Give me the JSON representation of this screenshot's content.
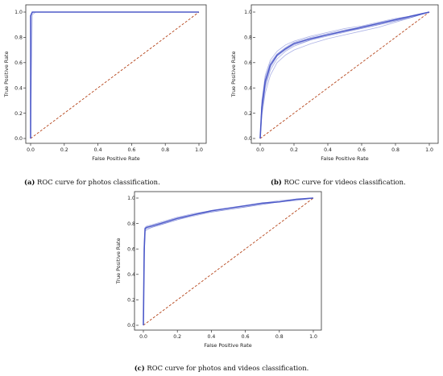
{
  "chart_data": [
    {
      "id": "a",
      "type": "line",
      "caption_letter": "(a)",
      "caption_text": "ROC curve for photos classification.",
      "xlabel": "False Positive Rate",
      "ylabel": "True Positive Rate",
      "xlim": [
        0,
        1
      ],
      "ylim": [
        0,
        1
      ],
      "ticks": [
        "0.0",
        "0.2",
        "0.4",
        "0.6",
        "0.8",
        "1.0"
      ],
      "series": [
        {
          "x": [
            0,
            0,
            0.01,
            1
          ],
          "y": [
            0,
            0.97,
            1.0,
            1.0
          ]
        },
        {
          "x": [
            0,
            0.005,
            0.02,
            1
          ],
          "y": [
            0,
            0.99,
            1.0,
            1.0
          ]
        },
        {
          "x": [
            0,
            0.01,
            0.03,
            1
          ],
          "y": [
            0,
            0.98,
            1.0,
            1.0
          ]
        }
      ]
    },
    {
      "id": "b",
      "type": "line",
      "caption_letter": "(b)",
      "caption_text": "ROC curve for videos classification.",
      "xlabel": "False Positive Rate",
      "ylabel": "True Positive Rate",
      "xlim": [
        0,
        1
      ],
      "ylim": [
        0,
        1
      ],
      "ticks": [
        "0.0",
        "0.2",
        "0.4",
        "0.6",
        "0.8",
        "1.0"
      ],
      "series": [
        {
          "x": [
            0,
            0.01,
            0.03,
            0.06,
            0.1,
            0.15,
            0.2,
            0.3,
            0.4,
            0.5,
            0.6,
            0.7,
            0.8,
            0.9,
            1.0
          ],
          "y": [
            0,
            0.25,
            0.45,
            0.58,
            0.66,
            0.71,
            0.75,
            0.79,
            0.82,
            0.85,
            0.88,
            0.91,
            0.94,
            0.97,
            1.0
          ]
        },
        {
          "x": [
            0,
            0.01,
            0.03,
            0.06,
            0.1,
            0.15,
            0.2,
            0.3,
            0.4,
            0.5,
            0.6,
            0.7,
            0.8,
            0.9,
            1.0
          ],
          "y": [
            0,
            0.2,
            0.4,
            0.54,
            0.63,
            0.69,
            0.73,
            0.78,
            0.81,
            0.84,
            0.87,
            0.9,
            0.93,
            0.96,
            1.0
          ]
        },
        {
          "x": [
            0,
            0.01,
            0.03,
            0.06,
            0.1,
            0.15,
            0.2,
            0.3,
            0.4,
            0.5,
            0.6,
            0.7,
            0.8,
            0.9,
            1.0
          ],
          "y": [
            0,
            0.3,
            0.5,
            0.62,
            0.69,
            0.74,
            0.77,
            0.81,
            0.84,
            0.87,
            0.89,
            0.92,
            0.95,
            0.97,
            1.0
          ]
        },
        {
          "x": [
            0,
            0.01,
            0.03,
            0.06,
            0.1,
            0.15,
            0.2,
            0.3,
            0.4,
            0.5,
            0.6,
            0.7,
            0.8,
            0.9,
            1.0
          ],
          "y": [
            0,
            0.18,
            0.36,
            0.5,
            0.6,
            0.66,
            0.7,
            0.75,
            0.79,
            0.82,
            0.85,
            0.88,
            0.92,
            0.96,
            1.0
          ]
        },
        {
          "x": [
            0,
            0.01,
            0.03,
            0.06,
            0.1,
            0.15,
            0.2,
            0.3,
            0.4,
            0.5,
            0.6,
            0.7,
            0.8,
            0.9,
            1.0
          ],
          "y": [
            0,
            0.28,
            0.48,
            0.6,
            0.67,
            0.72,
            0.76,
            0.8,
            0.83,
            0.86,
            0.88,
            0.91,
            0.94,
            0.97,
            1.0
          ]
        },
        {
          "x": [
            0,
            0.01,
            0.03,
            0.06,
            0.1,
            0.15,
            0.2,
            0.3,
            0.4,
            0.5,
            0.6,
            0.7,
            0.8,
            0.9,
            1.0
          ],
          "y": [
            0,
            0.22,
            0.42,
            0.56,
            0.65,
            0.7,
            0.74,
            0.78,
            0.82,
            0.85,
            0.87,
            0.9,
            0.93,
            0.96,
            1.0
          ]
        }
      ]
    },
    {
      "id": "c",
      "type": "line",
      "caption_letter": "(c)",
      "caption_text": "ROC curve for photos and videos classification.",
      "xlabel": "False Positive Rate",
      "ylabel": "True Positive Rate",
      "xlim": [
        0,
        1
      ],
      "ylim": [
        0,
        1
      ],
      "ticks": [
        "0.0",
        "0.2",
        "0.4",
        "0.6",
        "0.8",
        "1.0"
      ],
      "series": [
        {
          "x": [
            0,
            0.005,
            0.01,
            0.02,
            0.05,
            0.1,
            0.2,
            0.3,
            0.4,
            0.5,
            0.6,
            0.7,
            0.8,
            0.9,
            1.0
          ],
          "y": [
            0,
            0.6,
            0.76,
            0.77,
            0.78,
            0.8,
            0.84,
            0.87,
            0.9,
            0.92,
            0.94,
            0.96,
            0.97,
            0.99,
            1.0
          ]
        },
        {
          "x": [
            0,
            0.005,
            0.01,
            0.02,
            0.05,
            0.1,
            0.2,
            0.3,
            0.4,
            0.5,
            0.6,
            0.7,
            0.8,
            0.9,
            1.0
          ],
          "y": [
            0,
            0.55,
            0.75,
            0.76,
            0.77,
            0.79,
            0.83,
            0.86,
            0.89,
            0.91,
            0.93,
            0.95,
            0.97,
            0.99,
            1.0
          ]
        },
        {
          "x": [
            0,
            0.005,
            0.01,
            0.02,
            0.05,
            0.1,
            0.2,
            0.3,
            0.4,
            0.5,
            0.6,
            0.7,
            0.8,
            0.9,
            1.0
          ],
          "y": [
            0,
            0.65,
            0.77,
            0.78,
            0.79,
            0.81,
            0.85,
            0.88,
            0.9,
            0.92,
            0.94,
            0.96,
            0.98,
            0.99,
            1.0
          ]
        },
        {
          "x": [
            0,
            0.005,
            0.01,
            0.02,
            0.05,
            0.1,
            0.2,
            0.3,
            0.4,
            0.5,
            0.6,
            0.7,
            0.8,
            0.9,
            1.0
          ],
          "y": [
            0,
            0.5,
            0.74,
            0.75,
            0.77,
            0.79,
            0.83,
            0.87,
            0.89,
            0.91,
            0.93,
            0.95,
            0.97,
            0.98,
            1.0
          ]
        }
      ]
    }
  ],
  "colors": {
    "curve": "#4a56c8",
    "diagonal": "#b5451b",
    "frame": "#333333"
  }
}
